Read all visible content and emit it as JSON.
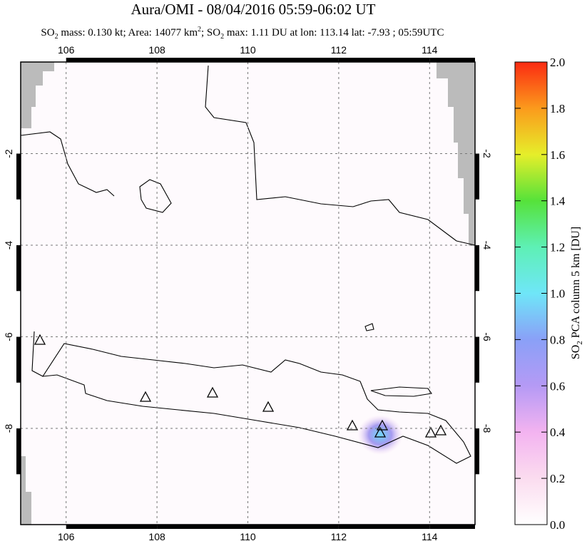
{
  "title": "Aura/OMI - 08/04/2016 05:59-06:02 UT",
  "subtitle": [
    "SO",
    "2",
    " mass: 0.130 kt; Area: 14077 km",
    "2",
    "; SO",
    "2",
    " max: 1.11 DU at lon: 113.14 lat: -7.93 ; 05:59UTC"
  ],
  "map": {
    "xlim": [
      105,
      115
    ],
    "ylim": [
      -10.1,
      0
    ],
    "xticks": [
      106,
      108,
      110,
      112,
      114
    ],
    "yticks": [
      -2,
      -4,
      -6,
      -8
    ]
  },
  "colorbar": {
    "label": [
      "SO",
      "2",
      " PCA column 5 km [DU]"
    ],
    "lim": [
      0,
      2
    ],
    "ticks": [
      {
        "value": 0,
        "label": "0.0"
      },
      {
        "value": 0.2,
        "label": "0.2"
      },
      {
        "value": 0.4,
        "label": "0.4"
      },
      {
        "value": 0.6,
        "label": "0.6"
      },
      {
        "value": 0.8,
        "label": "0.8"
      },
      {
        "value": 1,
        "label": "1.0"
      },
      {
        "value": 1.2,
        "label": "1.2"
      },
      {
        "value": 1.4,
        "label": "1.4"
      },
      {
        "value": 1.6,
        "label": "1.6"
      },
      {
        "value": 1.8,
        "label": "1.8"
      },
      {
        "value": 2,
        "label": "2.0"
      }
    ]
  }
}
